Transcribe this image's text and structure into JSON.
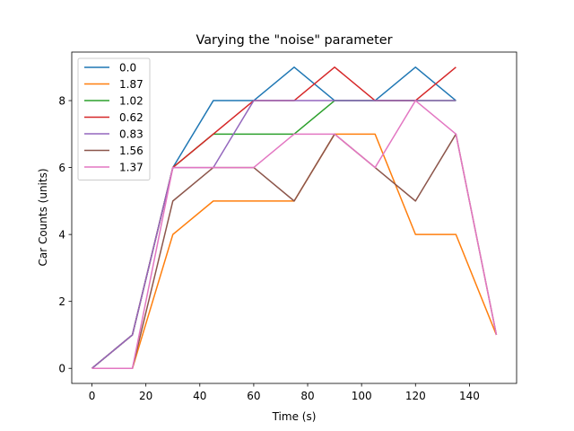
{
  "chart_data": {
    "type": "line",
    "title": "Varying the \"noise\" parameter",
    "xlabel": "Time (s)",
    "ylabel": "Car Counts (units)",
    "xlim": [
      -7.5,
      157.5
    ],
    "ylim": [
      -0.45,
      9.45
    ],
    "xticks": [
      0,
      20,
      40,
      60,
      80,
      100,
      120,
      140
    ],
    "yticks": [
      0,
      2,
      4,
      6,
      8
    ],
    "grid": false,
    "legend_position": "top-left",
    "series": [
      {
        "name": "0.0",
        "color": "#1f77b4",
        "x": [
          0,
          15,
          30,
          45,
          60,
          75,
          90,
          105,
          120,
          135
        ],
        "y": [
          0,
          1,
          6,
          8,
          8,
          9,
          8,
          8,
          9,
          8
        ]
      },
      {
        "name": "1.87",
        "color": "#ff7f0e",
        "x": [
          0,
          15,
          30,
          45,
          60,
          75,
          90,
          105,
          120,
          135,
          150
        ],
        "y": [
          0,
          0,
          4,
          5,
          5,
          5,
          7,
          7,
          4,
          4,
          1
        ]
      },
      {
        "name": "1.02",
        "color": "#2ca02c",
        "x": [
          0,
          15,
          30,
          45,
          60,
          75,
          90,
          105,
          120,
          135
        ],
        "y": [
          0,
          1,
          6,
          7,
          7,
          7,
          8,
          8,
          8,
          8
        ]
      },
      {
        "name": "0.62",
        "color": "#d62728",
        "x": [
          0,
          15,
          30,
          45,
          60,
          75,
          90,
          105,
          120,
          135
        ],
        "y": [
          0,
          1,
          6,
          7,
          8,
          8,
          9,
          8,
          8,
          9
        ]
      },
      {
        "name": "0.83",
        "color": "#9467bd",
        "x": [
          0,
          15,
          30,
          45,
          60,
          75,
          90,
          105,
          120,
          135
        ],
        "y": [
          0,
          1,
          6,
          6,
          8,
          8,
          8,
          8,
          8,
          8
        ]
      },
      {
        "name": "1.56",
        "color": "#8c564b",
        "x": [
          0,
          15,
          30,
          45,
          60,
          75,
          90,
          105,
          120,
          135,
          150
        ],
        "y": [
          0,
          0,
          5,
          6,
          6,
          5,
          7,
          6,
          5,
          7,
          1
        ]
      },
      {
        "name": "1.37",
        "color": "#e377c2",
        "x": [
          0,
          15,
          30,
          45,
          60,
          75,
          90,
          105,
          120,
          135,
          150
        ],
        "y": [
          0,
          0,
          6,
          6,
          6,
          7,
          7,
          6,
          8,
          7,
          1
        ]
      }
    ]
  }
}
